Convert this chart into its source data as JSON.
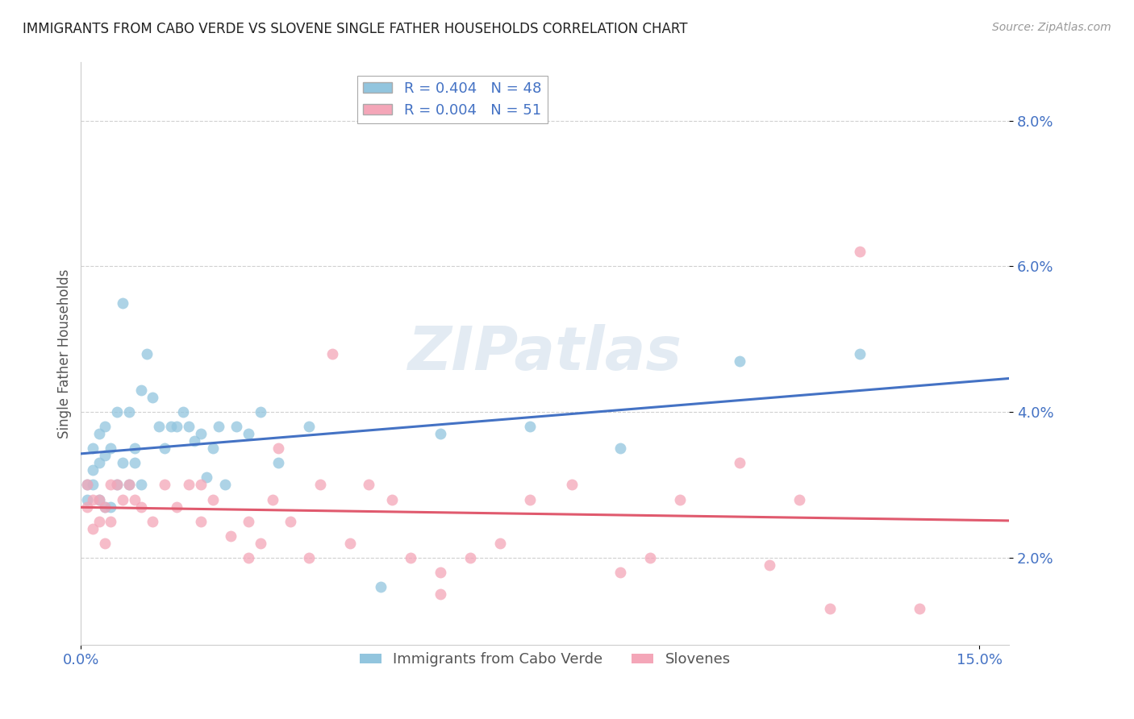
{
  "title": "IMMIGRANTS FROM CABO VERDE VS SLOVENE SINGLE FATHER HOUSEHOLDS CORRELATION CHART",
  "source": "Source: ZipAtlas.com",
  "ylabel": "Single Father Households",
  "legend1_label": "Immigrants from Cabo Verde",
  "legend2_label": "Slovenes",
  "r1": "0.404",
  "n1": "48",
  "r2": "0.004",
  "n2": "51",
  "blue_color": "#92c5de",
  "pink_color": "#f4a6b8",
  "line_blue": "#4472c4",
  "line_pink": "#e05a6e",
  "cabo_verde_x": [
    0.001,
    0.001,
    0.002,
    0.002,
    0.002,
    0.003,
    0.003,
    0.003,
    0.004,
    0.004,
    0.004,
    0.005,
    0.005,
    0.006,
    0.006,
    0.007,
    0.007,
    0.008,
    0.008,
    0.009,
    0.009,
    0.01,
    0.01,
    0.011,
    0.012,
    0.013,
    0.014,
    0.015,
    0.016,
    0.017,
    0.018,
    0.019,
    0.02,
    0.021,
    0.022,
    0.023,
    0.024,
    0.026,
    0.028,
    0.03,
    0.033,
    0.038,
    0.05,
    0.06,
    0.075,
    0.09,
    0.11,
    0.13
  ],
  "cabo_verde_y": [
    0.028,
    0.03,
    0.03,
    0.032,
    0.035,
    0.033,
    0.037,
    0.028,
    0.038,
    0.034,
    0.027,
    0.035,
    0.027,
    0.04,
    0.03,
    0.055,
    0.033,
    0.04,
    0.03,
    0.035,
    0.033,
    0.043,
    0.03,
    0.048,
    0.042,
    0.038,
    0.035,
    0.038,
    0.038,
    0.04,
    0.038,
    0.036,
    0.037,
    0.031,
    0.035,
    0.038,
    0.03,
    0.038,
    0.037,
    0.04,
    0.033,
    0.038,
    0.016,
    0.037,
    0.038,
    0.035,
    0.047,
    0.048
  ],
  "slovene_x": [
    0.001,
    0.001,
    0.002,
    0.002,
    0.003,
    0.003,
    0.004,
    0.004,
    0.005,
    0.005,
    0.006,
    0.007,
    0.008,
    0.009,
    0.01,
    0.012,
    0.014,
    0.016,
    0.018,
    0.02,
    0.022,
    0.025,
    0.028,
    0.03,
    0.032,
    0.035,
    0.04,
    0.045,
    0.048,
    0.052,
    0.055,
    0.06,
    0.065,
    0.07,
    0.075,
    0.082,
    0.09,
    0.095,
    0.1,
    0.11,
    0.115,
    0.12,
    0.125,
    0.13,
    0.033,
    0.038,
    0.042,
    0.02,
    0.028,
    0.06,
    0.14
  ],
  "slovene_y": [
    0.027,
    0.03,
    0.028,
    0.024,
    0.028,
    0.025,
    0.027,
    0.022,
    0.03,
    0.025,
    0.03,
    0.028,
    0.03,
    0.028,
    0.027,
    0.025,
    0.03,
    0.027,
    0.03,
    0.025,
    0.028,
    0.023,
    0.025,
    0.022,
    0.028,
    0.025,
    0.03,
    0.022,
    0.03,
    0.028,
    0.02,
    0.018,
    0.02,
    0.022,
    0.028,
    0.03,
    0.018,
    0.02,
    0.028,
    0.033,
    0.019,
    0.028,
    0.013,
    0.062,
    0.035,
    0.02,
    0.048,
    0.03,
    0.02,
    0.015,
    0.013
  ],
  "xlim": [
    0.0,
    0.155
  ],
  "ylim": [
    0.008,
    0.088
  ],
  "yticks": [
    0.02,
    0.04,
    0.06,
    0.08
  ],
  "ytick_labels": [
    "2.0%",
    "4.0%",
    "6.0%",
    "8.0%"
  ],
  "xticks": [
    0.0,
    0.15
  ],
  "xtick_labels": [
    "0.0%",
    "15.0%"
  ]
}
